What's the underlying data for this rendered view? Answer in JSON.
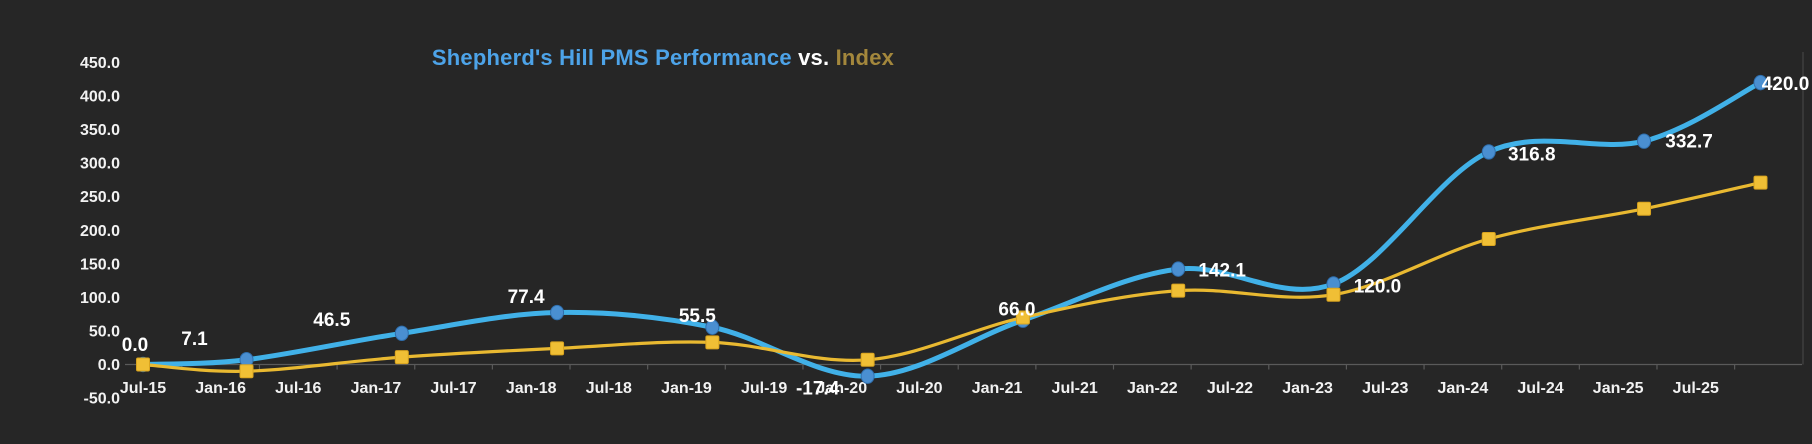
{
  "chart_data": {
    "type": "line",
    "title": {
      "part1": "Shepherd's Hill PMS Performance",
      "part2": " vs. ",
      "part3": "Index"
    },
    "legend": "none",
    "gridlines": "off",
    "y_axis": {
      "min": -50,
      "max": 450,
      "step": 50,
      "tick_values": [
        450,
        400,
        350,
        300,
        250,
        200,
        150,
        100,
        50,
        0,
        -50
      ],
      "tick_labels": [
        "450.0",
        "400.0",
        "350.0",
        "300.0",
        "250.0",
        "200.0",
        "150.0",
        "100.0",
        "50.0",
        "0.0",
        "-50.0"
      ]
    },
    "x_axis": {
      "tick_labels": [
        "Jul-15",
        "Jan-16",
        "Jul-16",
        "Jan-17",
        "Jul-17",
        "Jan-18",
        "Jul-18",
        "Jan-19",
        "Jul-19",
        "Jan-20",
        "Jul-20",
        "Jan-21",
        "Jul-21",
        "Jan-22",
        "Jul-22",
        "Jan-23",
        "Jul-23",
        "Jan-24",
        "Jul-24",
        "Jan-25",
        "Jul-25"
      ],
      "tick_month_offsets": [
        0,
        6,
        12,
        18,
        24,
        30,
        36,
        42,
        48,
        54,
        60,
        66,
        72,
        78,
        84,
        90,
        96,
        102,
        108,
        114,
        120
      ]
    },
    "series": [
      {
        "name": "Shepherd's Hill PMS Performance",
        "marker": "circle",
        "line_color": "#41b1e8",
        "marker_color": "#4a8fd1",
        "marker_edge": "#2f6fae",
        "x_month_offsets": [
          0,
          8,
          20,
          32,
          44,
          56,
          68,
          80,
          92,
          104,
          116,
          125
        ],
        "values": [
          0.0,
          7.1,
          46.5,
          77.4,
          55.5,
          -17.4,
          66.0,
          142.1,
          120.0,
          316.8,
          332.7,
          420.0
        ],
        "point_labels": [
          "0.0",
          "7.1",
          "46.5",
          "77.4",
          "55.5",
          "-17.4",
          "66.0",
          "142.1",
          "120.0",
          "316.8",
          "332.7",
          "420.0"
        ],
        "label_offsets": [
          [
            -8,
            -20
          ],
          [
            -52,
            -21
          ],
          [
            -70,
            -14
          ],
          [
            -31,
            -16
          ],
          [
            -15,
            -12
          ],
          [
            -50,
            12
          ],
          [
            -6,
            -11
          ],
          [
            44,
            1
          ],
          [
            44,
            2
          ],
          [
            43,
            2
          ],
          [
            45,
            0
          ],
          [
            25,
            1
          ]
        ]
      },
      {
        "name": "Index",
        "marker": "square",
        "line_color": "#e9b931",
        "marker_color": "#f0bf35",
        "marker_edge": "#d9a41f",
        "x_month_offsets": [
          0,
          8,
          20,
          32,
          44,
          56,
          68,
          80,
          92,
          104,
          116,
          125
        ],
        "values": [
          0,
          -10,
          11,
          24,
          33,
          7,
          70,
          110,
          104,
          187,
          232,
          271
        ],
        "point_labels": [],
        "label_offsets": []
      }
    ],
    "colors": {
      "background": "#262626",
      "axis_line": "#5a5a5a",
      "tick_text": "#f2f2f2",
      "data_label_text": "#ffffff",
      "title_part1": "#4da3e8",
      "title_part2": "#ffffff",
      "title_part3": "#a3873c",
      "plot_right_border": "#454545"
    }
  }
}
